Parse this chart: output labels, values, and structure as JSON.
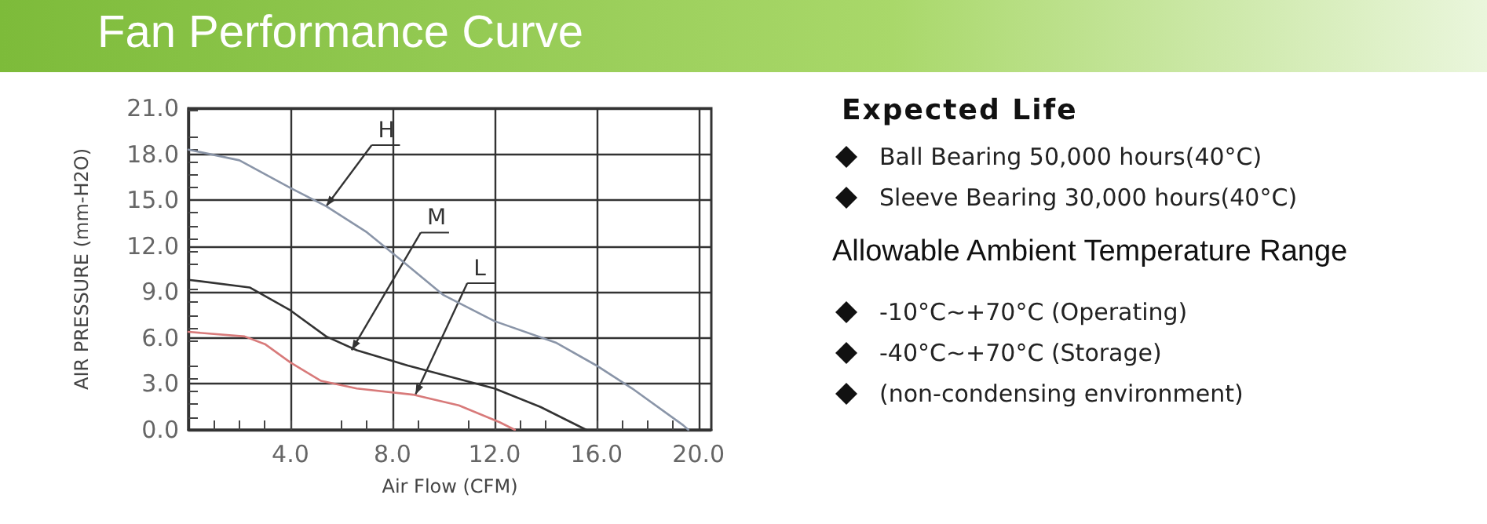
{
  "chart_data": [
    {
      "type": "line",
      "title": "Fan Performance Curve",
      "xlabel": "Air Flow (CFM)",
      "ylabel": "AIR PRESSURE (mm-H2O)",
      "xlim": [
        0,
        20.5
      ],
      "xticks": [
        {
          "value": 0,
          "label": null
        },
        {
          "value": 4,
          "label": "4.0"
        },
        {
          "value": 8,
          "label": "8.0"
        },
        {
          "value": 12,
          "label": "12.0"
        },
        {
          "value": 16,
          "label": "16.0"
        },
        {
          "value": 20,
          "label": "20.0"
        }
      ],
      "ylim": [
        0,
        21
      ],
      "yticks": [
        {
          "value": 0,
          "label": "0.0"
        },
        {
          "value": 3,
          "label": "3.0"
        },
        {
          "value": 6,
          "label": "6.0"
        },
        {
          "value": 9,
          "label": "9.0"
        },
        {
          "value": 12,
          "label": "12.0"
        },
        {
          "value": 15,
          "label": "15.0"
        },
        {
          "value": 18,
          "label": "18.0"
        },
        {
          "value": 21,
          "label": "21.0"
        }
      ],
      "grid": true,
      "marker": "none",
      "line_style": "solid",
      "series": [
        {
          "color": "#8a95a8",
          "x": [
            0,
            2,
            4,
            5.4,
            7,
            8.4,
            10,
            12,
            14.4,
            16,
            17.4,
            19.4,
            19.6
          ],
          "values": [
            18.3,
            17.6,
            15.8,
            14.6,
            12.9,
            11.0,
            8.8,
            7.1,
            5.7,
            4.2,
            2.7,
            0.3,
            0
          ]
        },
        {
          "color": "#333333",
          "x": [
            0,
            2.4,
            4,
            5.4,
            6.6,
            8.6,
            12,
            13.8,
            15.6
          ],
          "values": [
            9.8,
            9.3,
            7.8,
            6.1,
            5.2,
            4.2,
            2.7,
            1.5,
            0
          ]
        },
        {
          "color": "#d87a7a",
          "x": [
            0,
            2.2,
            3,
            4,
            5.2,
            6.6,
            8.8,
            10.6,
            12.2,
            12.8
          ],
          "values": [
            6.4,
            6.1,
            5.6,
            4.4,
            3.2,
            2.7,
            2.3,
            1.6,
            0.5,
            0
          ]
        }
      ],
      "annotations": [
        {
          "text": "H",
          "x": 5.4,
          "y": 14.6
        },
        {
          "text": "M",
          "x": 6.4,
          "y": 5.2
        },
        {
          "text": "L",
          "x": 8.9,
          "y": 2.3
        }
      ]
    },
    {
      "type": "other",
      "title": "Expected Life",
      "annotations": [
        "Ball Bearing 50,000 hours(40°C)",
        "Sleeve Bearing 30,000 hours(40°C)"
      ]
    },
    {
      "type": "other",
      "title": "Allowable Ambient Temperature Range",
      "annotations": [
        "-10°C~+70°C (Operating)",
        "-40°C~+70°C (Storage)",
        "(non-condensing environment)"
      ]
    }
  ]
}
